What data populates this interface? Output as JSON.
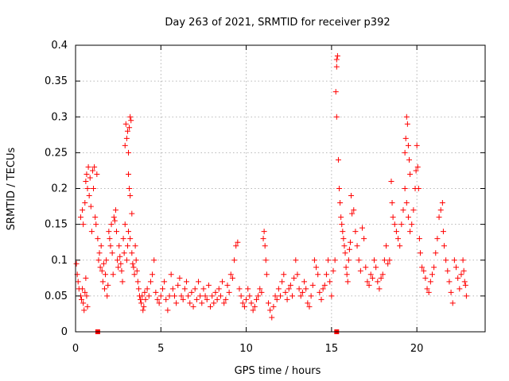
{
  "chart_data": {
    "type": "scatter",
    "title": "Day 263 of 2021, SRMTID for receiver p392",
    "xlabel": "GPS time / hours",
    "ylabel": "SRMTID / TECUs",
    "xlim": [
      0,
      24
    ],
    "ylim": [
      0,
      0.4
    ],
    "x_ticks": [
      0,
      5,
      10,
      15,
      20
    ],
    "x_tick_labels": [
      "0",
      "5",
      "10",
      "15",
      "20"
    ],
    "y_ticks": [
      0,
      0.05,
      0.1,
      0.15,
      0.2,
      0.25,
      0.3,
      0.35,
      0.4
    ],
    "y_tick_labels": [
      "0",
      "0.05",
      "0.1",
      "0.15",
      "0.2",
      "0.25",
      "0.3",
      "0.35",
      "0.4"
    ],
    "grid": true,
    "marker": "+",
    "color": "#ff0000",
    "series": [
      {
        "name": "SRMTID",
        "points": [
          [
            0.05,
            0.095
          ],
          [
            0.1,
            0.08
          ],
          [
            0.15,
            0.07
          ],
          [
            0.2,
            0.06
          ],
          [
            0.3,
            0.05
          ],
          [
            0.35,
            0.045
          ],
          [
            0.4,
            0.06
          ],
          [
            0.45,
            0.04
          ],
          [
            0.5,
            0.03
          ],
          [
            0.55,
            0.055
          ],
          [
            0.6,
            0.075
          ],
          [
            0.65,
            0.05
          ],
          [
            0.7,
            0.035
          ],
          [
            0.3,
            0.16
          ],
          [
            0.4,
            0.17
          ],
          [
            0.45,
            0.15
          ],
          [
            0.55,
            0.18
          ],
          [
            0.6,
            0.21
          ],
          [
            0.65,
            0.22
          ],
          [
            0.7,
            0.2
          ],
          [
            0.75,
            0.23
          ],
          [
            0.8,
            0.19
          ],
          [
            0.85,
            0.215
          ],
          [
            0.9,
            0.175
          ],
          [
            0.95,
            0.14
          ],
          [
            1.0,
            0.225
          ],
          [
            1.05,
            0.2
          ],
          [
            1.1,
            0.23
          ],
          [
            1.15,
            0.16
          ],
          [
            1.2,
            0.15
          ],
          [
            1.25,
            0.22
          ],
          [
            1.3,
            0.13
          ],
          [
            1.35,
            0.1
          ],
          [
            1.4,
            0.11
          ],
          [
            1.45,
            0.09
          ],
          [
            1.5,
            0.12
          ],
          [
            1.55,
            0.085
          ],
          [
            1.6,
            0.07
          ],
          [
            1.65,
            0.095
          ],
          [
            1.7,
            0.06
          ],
          [
            1.75,
            0.08
          ],
          [
            1.8,
            0.1
          ],
          [
            1.85,
            0.05
          ],
          [
            1.9,
            0.065
          ],
          [
            1.95,
            0.14
          ],
          [
            2.0,
            0.13
          ],
          [
            2.05,
            0.12
          ],
          [
            2.1,
            0.15
          ],
          [
            2.15,
            0.11
          ],
          [
            2.2,
            0.08
          ],
          [
            2.25,
            0.16
          ],
          [
            2.3,
            0.155
          ],
          [
            2.35,
            0.17
          ],
          [
            2.4,
            0.14
          ],
          [
            2.45,
            0.1
          ],
          [
            2.5,
            0.09
          ],
          [
            2.55,
            0.12
          ],
          [
            2.6,
            0.105
          ],
          [
            2.65,
            0.095
          ],
          [
            2.7,
            0.085
          ],
          [
            2.75,
            0.07
          ],
          [
            2.8,
            0.13
          ],
          [
            2.85,
            0.11
          ],
          [
            2.9,
            0.15
          ],
          [
            2.9,
            0.26
          ],
          [
            2.95,
            0.29
          ],
          [
            3.0,
            0.27
          ],
          [
            3.05,
            0.28
          ],
          [
            3.1,
            0.25
          ],
          [
            3.15,
            0.285
          ],
          [
            3.2,
            0.3
          ],
          [
            3.25,
            0.295
          ],
          [
            3.1,
            0.22
          ],
          [
            3.15,
            0.2
          ],
          [
            3.2,
            0.19
          ],
          [
            3.3,
            0.165
          ],
          [
            3.0,
            0.1
          ],
          [
            3.05,
            0.12
          ],
          [
            3.1,
            0.14
          ],
          [
            3.2,
            0.13
          ],
          [
            3.3,
            0.11
          ],
          [
            3.35,
            0.095
          ],
          [
            3.4,
            0.09
          ],
          [
            3.45,
            0.08
          ],
          [
            3.5,
            0.12
          ],
          [
            3.55,
            0.1
          ],
          [
            3.6,
            0.085
          ],
          [
            3.65,
            0.07
          ],
          [
            3.7,
            0.06
          ],
          [
            3.75,
            0.05
          ],
          [
            3.8,
            0.045
          ],
          [
            3.85,
            0.04
          ],
          [
            3.9,
            0.05
          ],
          [
            3.95,
            0.03
          ],
          [
            4.0,
            0.035
          ],
          [
            4.05,
            0.055
          ],
          [
            4.1,
            0.045
          ],
          [
            4.2,
            0.06
          ],
          [
            4.3,
            0.05
          ],
          [
            4.4,
            0.07
          ],
          [
            4.5,
            0.08
          ],
          [
            4.6,
            0.1
          ],
          [
            4.7,
            0.055
          ],
          [
            4.8,
            0.045
          ],
          [
            4.9,
            0.04
          ],
          [
            5.0,
            0.05
          ],
          [
            5.1,
            0.06
          ],
          [
            5.2,
            0.07
          ],
          [
            5.3,
            0.045
          ],
          [
            5.4,
            0.03
          ],
          [
            5.5,
            0.05
          ],
          [
            5.6,
            0.08
          ],
          [
            5.7,
            0.06
          ],
          [
            5.8,
            0.05
          ],
          [
            5.9,
            0.04
          ],
          [
            6.0,
            0.065
          ],
          [
            6.1,
            0.075
          ],
          [
            6.2,
            0.05
          ],
          [
            6.3,
            0.045
          ],
          [
            6.4,
            0.06
          ],
          [
            6.5,
            0.07
          ],
          [
            6.6,
            0.05
          ],
          [
            6.7,
            0.04
          ],
          [
            6.8,
            0.055
          ],
          [
            6.9,
            0.035
          ],
          [
            7.0,
            0.06
          ],
          [
            7.1,
            0.045
          ],
          [
            7.2,
            0.07
          ],
          [
            7.3,
            0.05
          ],
          [
            7.4,
            0.04
          ],
          [
            7.5,
            0.06
          ],
          [
            7.6,
            0.05
          ],
          [
            7.7,
            0.045
          ],
          [
            7.8,
            0.065
          ],
          [
            7.9,
            0.035
          ],
          [
            8.0,
            0.05
          ],
          [
            8.1,
            0.04
          ],
          [
            8.2,
            0.055
          ],
          [
            8.3,
            0.045
          ],
          [
            8.4,
            0.06
          ],
          [
            8.5,
            0.05
          ],
          [
            8.6,
            0.07
          ],
          [
            8.7,
            0.04
          ],
          [
            8.8,
            0.045
          ],
          [
            8.9,
            0.065
          ],
          [
            9.0,
            0.055
          ],
          [
            9.1,
            0.08
          ],
          [
            9.2,
            0.075
          ],
          [
            9.3,
            0.1
          ],
          [
            9.4,
            0.12
          ],
          [
            9.5,
            0.125
          ],
          [
            9.6,
            0.06
          ],
          [
            9.7,
            0.05
          ],
          [
            9.8,
            0.04
          ],
          [
            9.9,
            0.035
          ],
          [
            10.0,
            0.045
          ],
          [
            10.1,
            0.06
          ],
          [
            10.2,
            0.05
          ],
          [
            10.3,
            0.04
          ],
          [
            10.4,
            0.03
          ],
          [
            10.5,
            0.035
          ],
          [
            10.6,
            0.045
          ],
          [
            10.7,
            0.05
          ],
          [
            10.8,
            0.06
          ],
          [
            10.9,
            0.055
          ],
          [
            11.0,
            0.13
          ],
          [
            11.05,
            0.14
          ],
          [
            11.1,
            0.12
          ],
          [
            11.15,
            0.1
          ],
          [
            11.2,
            0.08
          ],
          [
            11.3,
            0.04
          ],
          [
            11.4,
            0.03
          ],
          [
            11.5,
            0.02
          ],
          [
            11.6,
            0.035
          ],
          [
            11.7,
            0.05
          ],
          [
            11.8,
            0.045
          ],
          [
            11.9,
            0.06
          ],
          [
            12.0,
            0.05
          ],
          [
            12.1,
            0.07
          ],
          [
            12.2,
            0.08
          ],
          [
            12.3,
            0.055
          ],
          [
            12.4,
            0.045
          ],
          [
            12.5,
            0.06
          ],
          [
            12.6,
            0.065
          ],
          [
            12.7,
            0.05
          ],
          [
            12.8,
            0.075
          ],
          [
            12.9,
            0.1
          ],
          [
            13.0,
            0.08
          ],
          [
            13.1,
            0.06
          ],
          [
            13.2,
            0.05
          ],
          [
            13.3,
            0.055
          ],
          [
            13.4,
            0.07
          ],
          [
            13.5,
            0.06
          ],
          [
            13.6,
            0.04
          ],
          [
            13.7,
            0.035
          ],
          [
            13.8,
            0.05
          ],
          [
            13.9,
            0.065
          ],
          [
            14.0,
            0.1
          ],
          [
            14.1,
            0.09
          ],
          [
            14.2,
            0.08
          ],
          [
            14.3,
            0.055
          ],
          [
            14.4,
            0.045
          ],
          [
            14.5,
            0.06
          ],
          [
            14.6,
            0.065
          ],
          [
            14.7,
            0.08
          ],
          [
            14.8,
            0.1
          ],
          [
            14.9,
            0.07
          ],
          [
            15.0,
            0.05
          ],
          [
            15.1,
            0.085
          ],
          [
            15.2,
            0.1
          ],
          [
            15.3,
            0.38
          ],
          [
            15.35,
            0.385
          ],
          [
            15.3,
            0.37
          ],
          [
            15.25,
            0.335
          ],
          [
            15.3,
            0.3
          ],
          [
            15.4,
            0.24
          ],
          [
            15.45,
            0.2
          ],
          [
            15.5,
            0.18
          ],
          [
            15.55,
            0.16
          ],
          [
            15.6,
            0.15
          ],
          [
            15.65,
            0.14
          ],
          [
            15.7,
            0.13
          ],
          [
            15.75,
            0.12
          ],
          [
            15.8,
            0.11
          ],
          [
            15.85,
            0.09
          ],
          [
            15.9,
            0.08
          ],
          [
            15.95,
            0.07
          ],
          [
            16.0,
            0.1
          ],
          [
            16.05,
            0.115
          ],
          [
            16.1,
            0.125
          ],
          [
            16.15,
            0.19
          ],
          [
            16.2,
            0.165
          ],
          [
            16.3,
            0.17
          ],
          [
            16.4,
            0.14
          ],
          [
            16.5,
            0.12
          ],
          [
            16.6,
            0.1
          ],
          [
            16.7,
            0.085
          ],
          [
            16.8,
            0.145
          ],
          [
            16.9,
            0.13
          ],
          [
            17.0,
            0.09
          ],
          [
            17.1,
            0.07
          ],
          [
            17.2,
            0.065
          ],
          [
            17.3,
            0.08
          ],
          [
            17.4,
            0.075
          ],
          [
            17.5,
            0.1
          ],
          [
            17.6,
            0.09
          ],
          [
            17.7,
            0.07
          ],
          [
            17.8,
            0.06
          ],
          [
            17.9,
            0.075
          ],
          [
            18.0,
            0.08
          ],
          [
            18.1,
            0.1
          ],
          [
            18.2,
            0.12
          ],
          [
            18.3,
            0.095
          ],
          [
            18.4,
            0.1
          ],
          [
            18.5,
            0.21
          ],
          [
            18.55,
            0.18
          ],
          [
            18.6,
            0.16
          ],
          [
            18.7,
            0.15
          ],
          [
            18.8,
            0.14
          ],
          [
            18.9,
            0.13
          ],
          [
            19.0,
            0.12
          ],
          [
            19.1,
            0.15
          ],
          [
            19.2,
            0.17
          ],
          [
            19.3,
            0.25
          ],
          [
            19.35,
            0.27
          ],
          [
            19.4,
            0.3
          ],
          [
            19.45,
            0.29
          ],
          [
            19.5,
            0.26
          ],
          [
            19.55,
            0.24
          ],
          [
            19.6,
            0.22
          ],
          [
            19.3,
            0.2
          ],
          [
            19.4,
            0.18
          ],
          [
            19.5,
            0.16
          ],
          [
            19.6,
            0.14
          ],
          [
            19.7,
            0.15
          ],
          [
            19.8,
            0.17
          ],
          [
            19.9,
            0.2
          ],
          [
            19.95,
            0.225
          ],
          [
            20.0,
            0.26
          ],
          [
            20.05,
            0.23
          ],
          [
            20.1,
            0.2
          ],
          [
            20.15,
            0.13
          ],
          [
            20.2,
            0.11
          ],
          [
            20.3,
            0.09
          ],
          [
            20.4,
            0.085
          ],
          [
            20.5,
            0.075
          ],
          [
            20.6,
            0.06
          ],
          [
            20.7,
            0.055
          ],
          [
            20.8,
            0.07
          ],
          [
            20.9,
            0.08
          ],
          [
            21.0,
            0.09
          ],
          [
            21.1,
            0.11
          ],
          [
            21.2,
            0.13
          ],
          [
            21.3,
            0.16
          ],
          [
            21.4,
            0.17
          ],
          [
            21.5,
            0.18
          ],
          [
            21.55,
            0.14
          ],
          [
            21.6,
            0.12
          ],
          [
            21.7,
            0.1
          ],
          [
            21.8,
            0.085
          ],
          [
            21.9,
            0.07
          ],
          [
            22.0,
            0.055
          ],
          [
            22.1,
            0.04
          ],
          [
            22.2,
            0.1
          ],
          [
            22.3,
            0.09
          ],
          [
            22.4,
            0.075
          ],
          [
            22.5,
            0.06
          ],
          [
            22.6,
            0.08
          ],
          [
            22.7,
            0.1
          ],
          [
            22.75,
            0.085
          ],
          [
            22.8,
            0.07
          ],
          [
            22.85,
            0.065
          ],
          [
            22.9,
            0.05
          ]
        ]
      }
    ],
    "gap_markers": [
      1.3,
      15.3
    ]
  }
}
